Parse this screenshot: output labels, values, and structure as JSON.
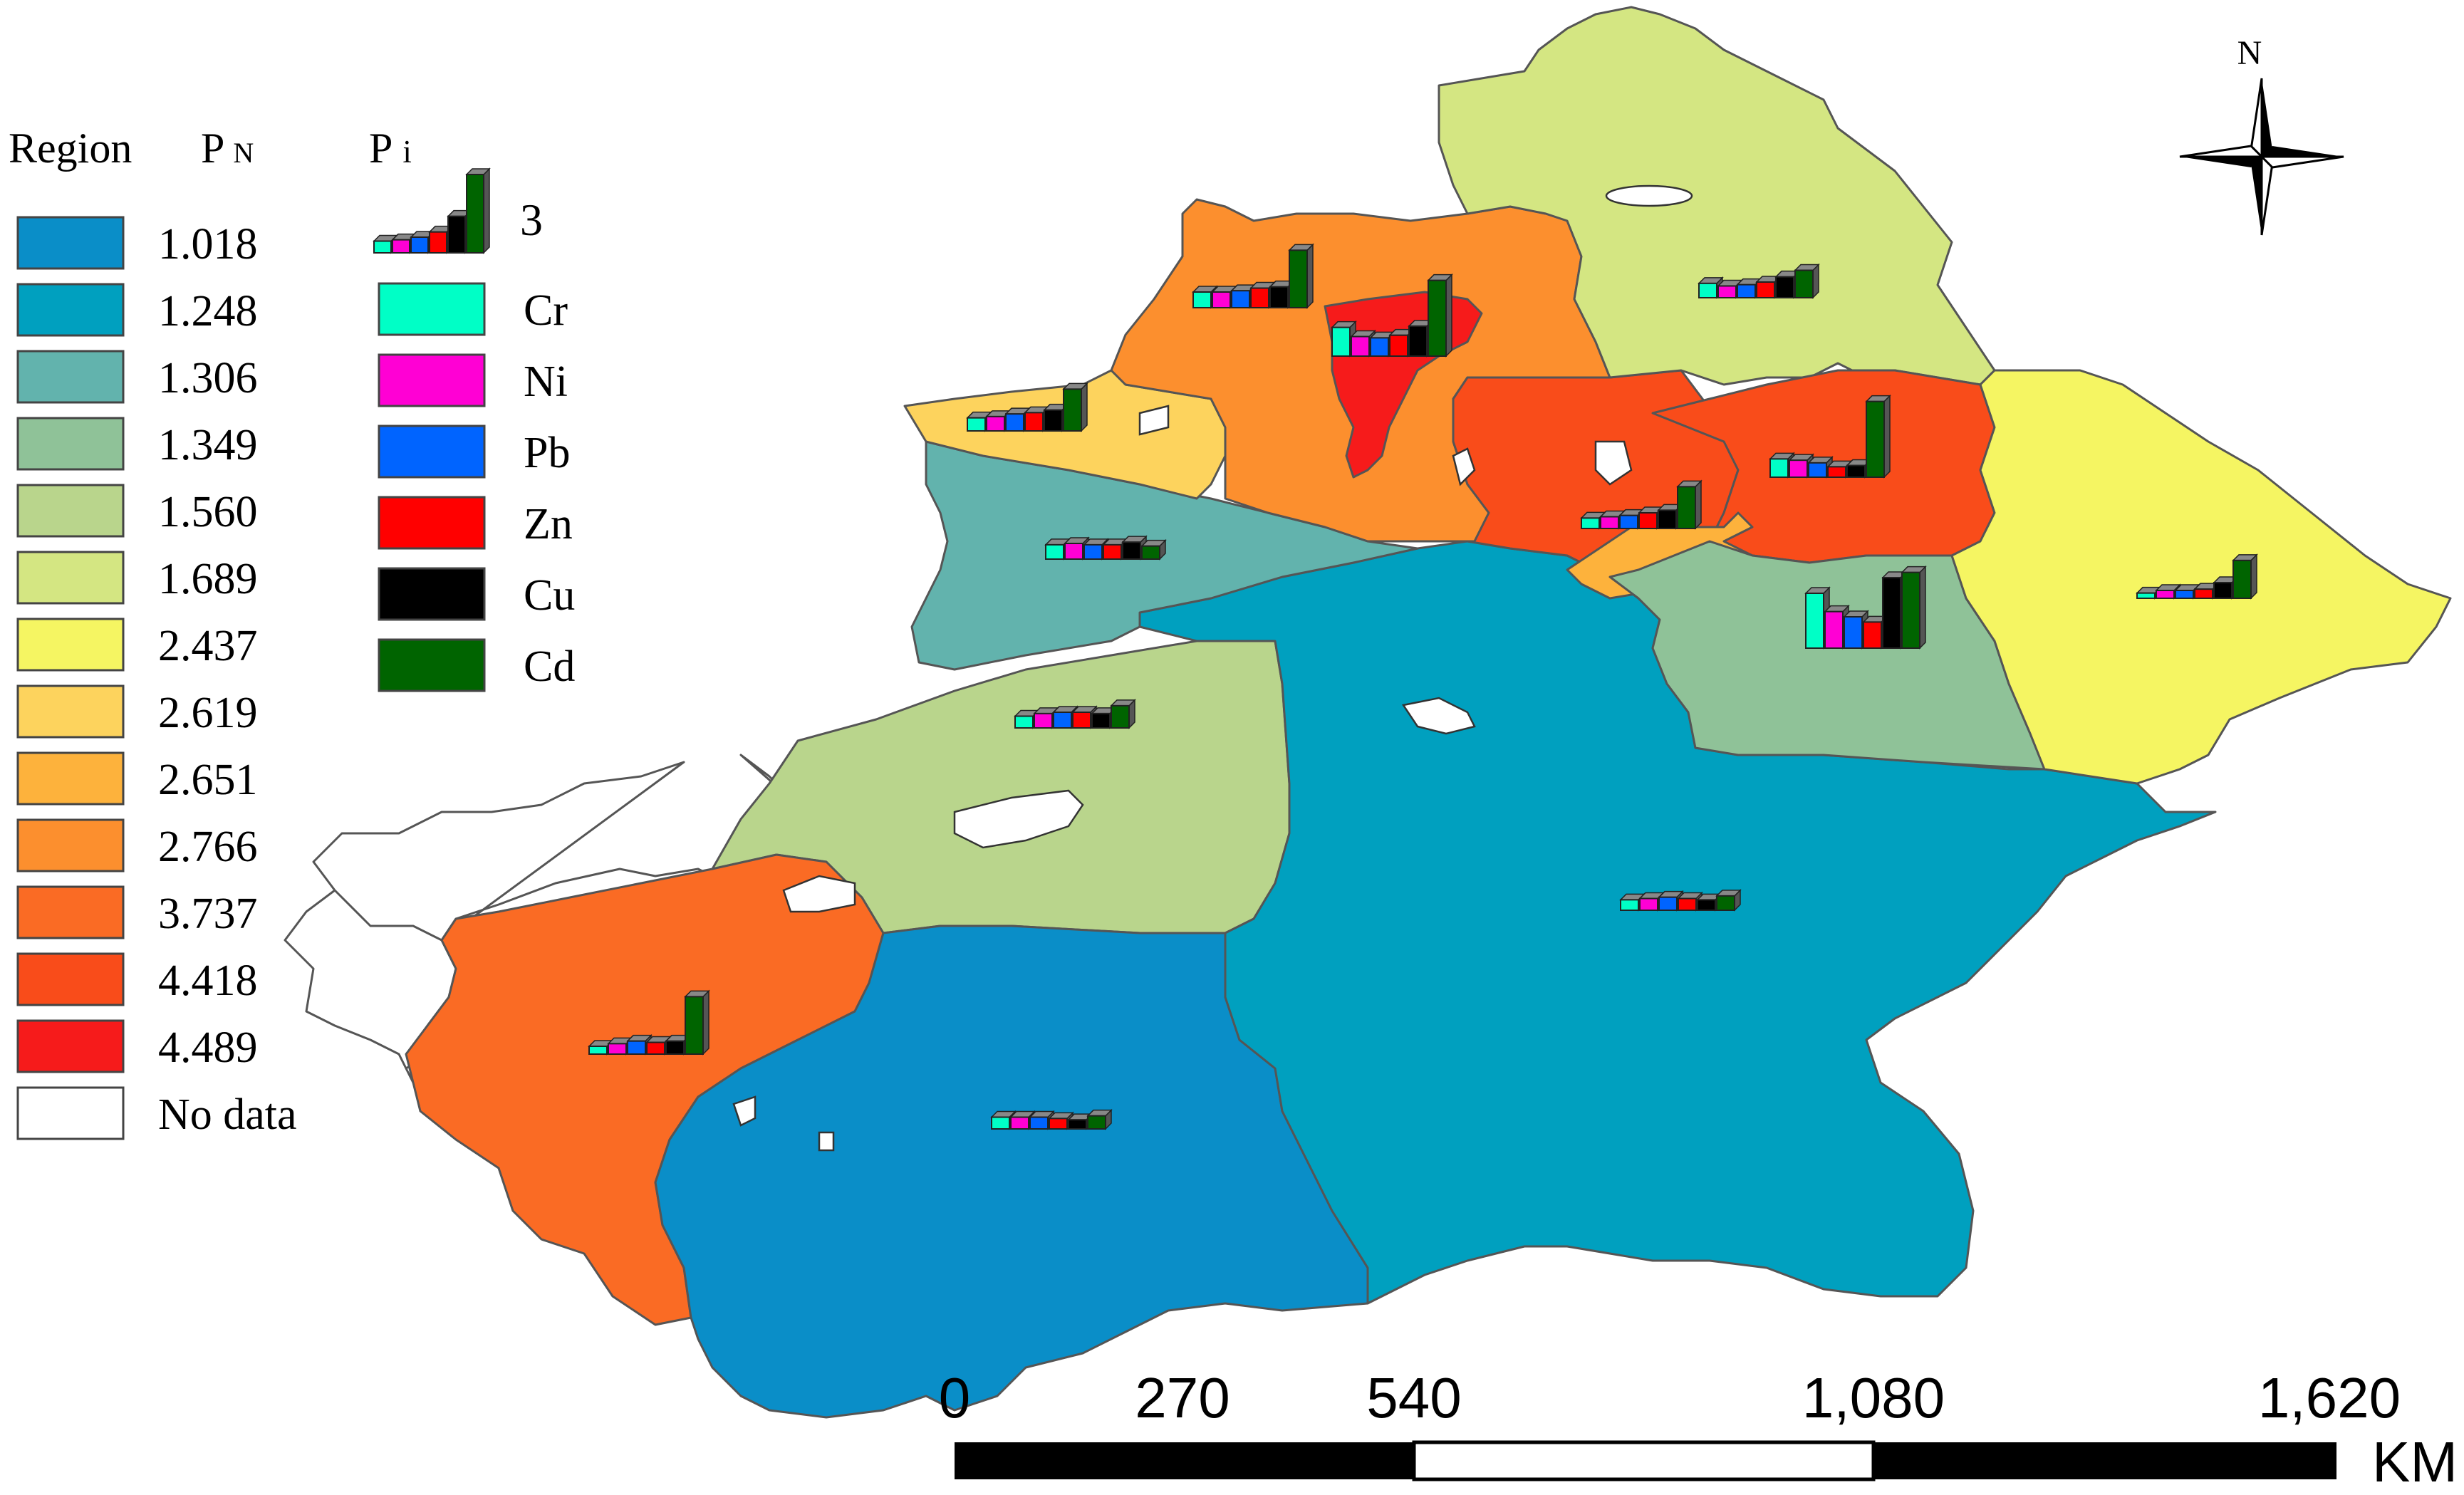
{
  "legend": {
    "region_heading": "Region",
    "pn_heading": "P",
    "pn_subscript": "N",
    "pi_heading": "P",
    "pi_subscript": "i",
    "pi_scale_value": "3",
    "classes": [
      {
        "value": "1.018",
        "color": "#0a8ec8"
      },
      {
        "value": "1.248",
        "color": "#00a0bf"
      },
      {
        "value": "1.306",
        "color": "#62b3ad"
      },
      {
        "value": "1.349",
        "color": "#8fc298"
      },
      {
        "value": "1.560",
        "color": "#b9d58c"
      },
      {
        "value": "1.689",
        "color": "#d4e682"
      },
      {
        "value": "2.437",
        "color": "#f5f562"
      },
      {
        "value": "2.619",
        "color": "#fdd35d"
      },
      {
        "value": "2.651",
        "color": "#fdb23c"
      },
      {
        "value": "2.766",
        "color": "#fc8f2e"
      },
      {
        "value": "3.737",
        "color": "#fa6b24"
      },
      {
        "value": "4.418",
        "color": "#f94c1a"
      },
      {
        "value": "4.489",
        "color": "#f61b1b"
      },
      {
        "value": "No data",
        "color": "#ffffff"
      }
    ],
    "metals": [
      {
        "name": "Cr",
        "color": "#00ffc6"
      },
      {
        "name": "Ni",
        "color": "#ff00d4"
      },
      {
        "name": "Pb",
        "color": "#0064ff"
      },
      {
        "name": "Zn",
        "color": "#ff0000"
      },
      {
        "name": "Cu",
        "color": "#000000"
      },
      {
        "name": "Cd",
        "color": "#006400"
      }
    ]
  },
  "north_arrow": {
    "label": "N"
  },
  "scale_bar": {
    "ticks": [
      "0",
      "270",
      "540",
      "1,080",
      "1,620"
    ],
    "unit": "KM"
  },
  "pi_charts": [
    {
      "region": "north-east-1.689",
      "values": [
        0.55,
        0.45,
        0.5,
        0.6,
        0.8,
        1.05
      ]
    },
    {
      "region": "north-2.766",
      "values": [
        0.6,
        0.6,
        0.65,
        0.75,
        0.8,
        2.2
      ]
    },
    {
      "region": "north-center-4.489",
      "values": [
        1.1,
        0.75,
        0.7,
        0.8,
        1.15,
        2.9
      ]
    },
    {
      "region": "north-west-2.619",
      "values": [
        0.5,
        0.55,
        0.65,
        0.7,
        0.8,
        1.6
      ]
    },
    {
      "region": "west-1.306",
      "values": [
        0.55,
        0.6,
        0.55,
        0.55,
        0.65,
        0.5
      ]
    },
    {
      "region": "center-north-2.651",
      "values": [
        0.4,
        0.45,
        0.5,
        0.6,
        0.7,
        1.6
      ]
    },
    {
      "region": "center-north-4.418",
      "values": [
        0.7,
        0.65,
        0.55,
        0.4,
        0.45,
        2.9
      ]
    },
    {
      "region": "center-1.349",
      "values": [
        2.1,
        1.4,
        1.2,
        1.0,
        2.7,
        2.9
      ]
    },
    {
      "region": "east-2.437",
      "values": [
        0.2,
        0.3,
        0.3,
        0.35,
        0.6,
        1.45
      ]
    },
    {
      "region": "west-1.560",
      "values": [
        0.45,
        0.55,
        0.6,
        0.6,
        0.55,
        0.85
      ]
    },
    {
      "region": "south-1.248",
      "values": [
        0.4,
        0.45,
        0.5,
        0.45,
        0.4,
        0.55
      ]
    },
    {
      "region": "south-west-3.737",
      "values": [
        0.3,
        0.4,
        0.5,
        0.45,
        0.5,
        2.2
      ]
    },
    {
      "region": "south-1.018",
      "values": [
        0.45,
        0.45,
        0.45,
        0.4,
        0.35,
        0.5
      ]
    }
  ]
}
